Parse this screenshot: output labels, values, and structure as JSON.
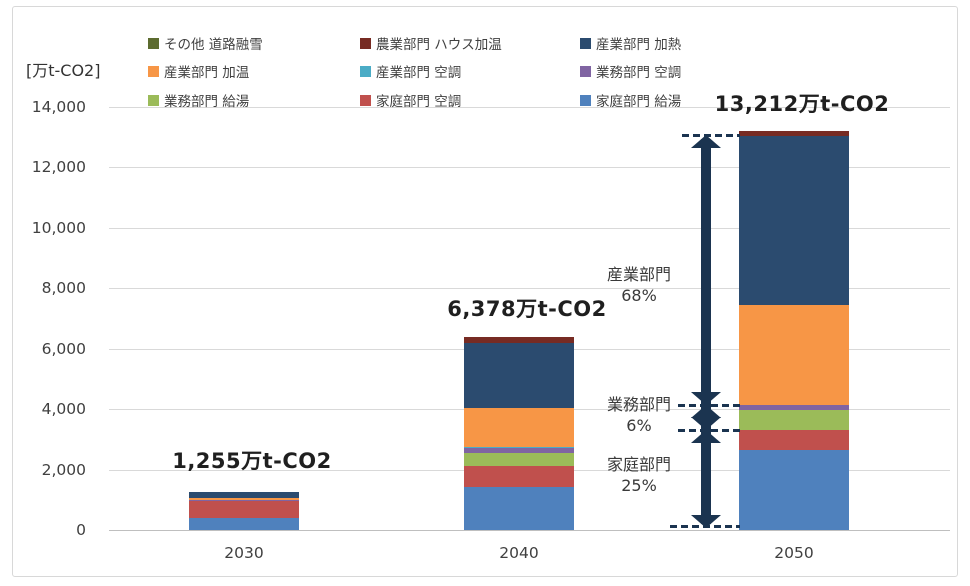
{
  "chart_data": {
    "type": "bar",
    "stacked": true,
    "title": "",
    "ylabel_unit": "[万t-CO2]",
    "xlabel": "",
    "ylim": [
      0,
      14000
    ],
    "grid": true,
    "legend_position": "top",
    "categories": [
      "2030",
      "2040",
      "2050"
    ],
    "yticks": [
      {
        "value": 0,
        "label": "0"
      },
      {
        "value": 2000,
        "label": "2,000"
      },
      {
        "value": 4000,
        "label": "4,000"
      },
      {
        "value": 6000,
        "label": "6,000"
      },
      {
        "value": 8000,
        "label": "8,000"
      },
      {
        "value": 10000,
        "label": "10,000"
      },
      {
        "value": 12000,
        "label": "12,000"
      },
      {
        "value": 14000,
        "label": "14,000"
      }
    ],
    "series": [
      {
        "name": "家庭部門 給湯",
        "color": "#4F81BD",
        "values": [
          405,
          1408,
          2650
        ]
      },
      {
        "name": "家庭部門 空調",
        "color": "#C0504D",
        "values": [
          555,
          720,
          670
        ]
      },
      {
        "name": "業務部門 給湯",
        "color": "#9BBB59",
        "values": [
          0,
          420,
          660
        ]
      },
      {
        "name": "業務部門 空調",
        "color": "#8064A2",
        "values": [
          40,
          150,
          160
        ]
      },
      {
        "name": "産業部門 空調",
        "color": "#4BACC6",
        "values": [
          0,
          40,
          0
        ]
      },
      {
        "name": "産業部門 加温",
        "color": "#F79646",
        "values": [
          45,
          1310,
          3300
        ]
      },
      {
        "name": "産業部門 加熱",
        "color": "#2B4B6F",
        "values": [
          210,
          2130,
          5600
        ]
      },
      {
        "name": "農業部門 ハウス加温",
        "color": "#772B23",
        "values": [
          0,
          200,
          172
        ]
      },
      {
        "name": "その他 道路融雪",
        "color": "#5C6B2F",
        "values": [
          0,
          0,
          0
        ]
      }
    ],
    "totals": [
      {
        "value": 1255,
        "label": "1,255万t-CO2"
      },
      {
        "value": 6378,
        "label": "6,378万t-CO2"
      },
      {
        "value": 13212,
        "label": "13,212万t-CO2"
      }
    ]
  },
  "annotations": {
    "arrow_color": "#1B3450",
    "sectors": [
      {
        "label": "産業部門",
        "pct": "68%"
      },
      {
        "label": "業務部門",
        "pct": "6%"
      },
      {
        "label": "家庭部門",
        "pct": "25%"
      }
    ]
  }
}
